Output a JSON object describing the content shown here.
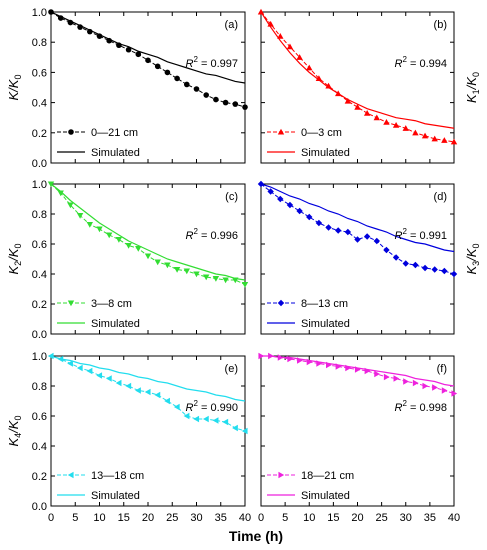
{
  "figure": {
    "x_axis_label": "Time (h)",
    "x_ticks": [
      0,
      5,
      10,
      15,
      20,
      25,
      30,
      35,
      40
    ],
    "y_ticks": [
      0.0,
      0.2,
      0.4,
      0.6,
      0.8,
      1.0
    ]
  },
  "chart_data": [
    {
      "panel": "(a)",
      "type": "line",
      "ylabel_main": "K/K",
      "ylabel_sub": "0",
      "ylabel_side": "left",
      "r2_label": "R",
      "r2_value": "= 0.997",
      "legend_measured": "0—21 cm",
      "legend_simulated": "Simulated",
      "color": "#000000",
      "marker": "circle",
      "xlim": [
        0,
        40
      ],
      "ylim": [
        0,
        1
      ],
      "x": [
        0,
        2,
        4,
        6,
        8,
        10,
        12,
        14,
        16,
        18,
        20,
        22,
        24,
        26,
        28,
        30,
        32,
        34,
        36,
        38,
        40
      ],
      "measured": [
        1.0,
        0.96,
        0.93,
        0.9,
        0.87,
        0.84,
        0.81,
        0.78,
        0.75,
        0.72,
        0.68,
        0.64,
        0.6,
        0.56,
        0.52,
        0.49,
        0.45,
        0.42,
        0.4,
        0.39,
        0.37
      ],
      "simulated": [
        1.0,
        0.97,
        0.94,
        0.91,
        0.88,
        0.85,
        0.82,
        0.79,
        0.77,
        0.74,
        0.72,
        0.7,
        0.67,
        0.65,
        0.63,
        0.61,
        0.59,
        0.58,
        0.56,
        0.54,
        0.53
      ]
    },
    {
      "panel": "(b)",
      "type": "line",
      "ylabel_main": "K",
      "ylabel_num": "1",
      "ylabel_slash": "/K",
      "ylabel_sub": "0",
      "ylabel_side": "right",
      "r2_label": "R",
      "r2_value": "= 0.994",
      "legend_measured": "0—3 cm",
      "legend_simulated": "Simulated",
      "color": "#ff0000",
      "marker": "triangle-up",
      "xlim": [
        0,
        40
      ],
      "ylim": [
        0,
        1
      ],
      "x": [
        0,
        2,
        4,
        6,
        8,
        10,
        12,
        14,
        16,
        18,
        20,
        22,
        24,
        26,
        28,
        30,
        32,
        34,
        36,
        38,
        40
      ],
      "measured": [
        1.0,
        0.92,
        0.84,
        0.77,
        0.7,
        0.63,
        0.56,
        0.51,
        0.46,
        0.41,
        0.37,
        0.33,
        0.3,
        0.27,
        0.25,
        0.23,
        0.2,
        0.18,
        0.16,
        0.15,
        0.14
      ],
      "simulated": [
        1.0,
        0.9,
        0.81,
        0.73,
        0.66,
        0.6,
        0.55,
        0.5,
        0.46,
        0.42,
        0.39,
        0.36,
        0.34,
        0.32,
        0.3,
        0.29,
        0.28,
        0.26,
        0.25,
        0.24,
        0.23
      ]
    },
    {
      "panel": "(c)",
      "type": "line",
      "ylabel_main": "K",
      "ylabel_num": "2",
      "ylabel_slash": "/K",
      "ylabel_sub": "0",
      "ylabel_side": "left",
      "r2_label": "R",
      "r2_value": "= 0.996",
      "legend_measured": "3—8 cm",
      "legend_simulated": "Simulated",
      "color": "#33dd33",
      "marker": "triangle-down",
      "xlim": [
        0,
        40
      ],
      "ylim": [
        0,
        1
      ],
      "x": [
        0,
        2,
        4,
        6,
        8,
        10,
        12,
        14,
        16,
        18,
        20,
        22,
        24,
        26,
        28,
        30,
        32,
        34,
        36,
        38,
        40
      ],
      "measured": [
        1.0,
        0.94,
        0.86,
        0.79,
        0.73,
        0.7,
        0.66,
        0.63,
        0.59,
        0.57,
        0.52,
        0.48,
        0.46,
        0.43,
        0.42,
        0.4,
        0.38,
        0.37,
        0.36,
        0.36,
        0.33
      ],
      "simulated": [
        1.0,
        0.95,
        0.89,
        0.84,
        0.79,
        0.74,
        0.7,
        0.66,
        0.62,
        0.59,
        0.56,
        0.53,
        0.5,
        0.48,
        0.46,
        0.44,
        0.42,
        0.4,
        0.39,
        0.37,
        0.36
      ]
    },
    {
      "panel": "(d)",
      "type": "line",
      "ylabel_main": "K",
      "ylabel_num": "3",
      "ylabel_slash": "/K",
      "ylabel_sub": "0",
      "ylabel_side": "right",
      "r2_label": "R",
      "r2_value": "= 0.991",
      "legend_measured": "8—13 cm",
      "legend_simulated": "Simulated",
      "color": "#0000dd",
      "marker": "diamond",
      "xlim": [
        0,
        40
      ],
      "ylim": [
        0,
        1
      ],
      "x": [
        0,
        2,
        4,
        6,
        8,
        10,
        12,
        14,
        16,
        18,
        20,
        22,
        24,
        26,
        28,
        30,
        32,
        34,
        36,
        38,
        40
      ],
      "measured": [
        1.0,
        0.95,
        0.9,
        0.86,
        0.82,
        0.78,
        0.74,
        0.71,
        0.69,
        0.68,
        0.63,
        0.65,
        0.62,
        0.56,
        0.51,
        0.47,
        0.46,
        0.44,
        0.43,
        0.42,
        0.4
      ],
      "simulated": [
        1.0,
        0.98,
        0.95,
        0.92,
        0.9,
        0.87,
        0.85,
        0.82,
        0.8,
        0.77,
        0.75,
        0.72,
        0.7,
        0.68,
        0.65,
        0.63,
        0.61,
        0.6,
        0.58,
        0.56,
        0.55
      ]
    },
    {
      "panel": "(e)",
      "type": "line",
      "ylabel_main": "K",
      "ylabel_num": "4",
      "ylabel_slash": "/K",
      "ylabel_sub": "0",
      "ylabel_side": "left",
      "r2_label": "R",
      "r2_value": "= 0.990",
      "legend_measured": "13—18 cm",
      "legend_simulated": "Simulated",
      "color": "#22ddee",
      "marker": "triangle-left",
      "xlim": [
        0,
        40
      ],
      "ylim": [
        0,
        1
      ],
      "x": [
        0,
        2,
        4,
        6,
        8,
        10,
        12,
        14,
        16,
        18,
        20,
        22,
        24,
        26,
        28,
        30,
        32,
        34,
        36,
        38,
        40
      ],
      "measured": [
        1.0,
        0.98,
        0.95,
        0.92,
        0.9,
        0.87,
        0.85,
        0.82,
        0.8,
        0.77,
        0.76,
        0.74,
        0.7,
        0.66,
        0.6,
        0.58,
        0.58,
        0.57,
        0.56,
        0.52,
        0.5
      ],
      "simulated": [
        1.0,
        0.98,
        0.97,
        0.95,
        0.94,
        0.92,
        0.91,
        0.89,
        0.88,
        0.86,
        0.85,
        0.83,
        0.82,
        0.8,
        0.78,
        0.77,
        0.76,
        0.74,
        0.73,
        0.71,
        0.7
      ]
    },
    {
      "panel": "(f)",
      "type": "line",
      "ylabel_main": "",
      "ylabel_side": "none",
      "r2_label": "R",
      "r2_value": "= 0.998",
      "legend_measured": "18—21 cm",
      "legend_simulated": "Simulated",
      "color": "#ee22dd",
      "marker": "triangle-right",
      "xlim": [
        0,
        40
      ],
      "ylim": [
        0,
        1
      ],
      "x": [
        0,
        2,
        4,
        6,
        8,
        10,
        12,
        14,
        16,
        18,
        20,
        22,
        24,
        26,
        28,
        30,
        32,
        34,
        36,
        38,
        40
      ],
      "measured": [
        1.0,
        1.0,
        0.99,
        0.98,
        0.97,
        0.96,
        0.95,
        0.94,
        0.93,
        0.92,
        0.91,
        0.9,
        0.88,
        0.86,
        0.85,
        0.83,
        0.82,
        0.8,
        0.79,
        0.77,
        0.75
      ],
      "simulated": [
        1.0,
        1.0,
        0.99,
        0.99,
        0.98,
        0.97,
        0.96,
        0.95,
        0.94,
        0.93,
        0.92,
        0.91,
        0.9,
        0.89,
        0.88,
        0.87,
        0.85,
        0.84,
        0.83,
        0.81,
        0.8
      ]
    }
  ]
}
